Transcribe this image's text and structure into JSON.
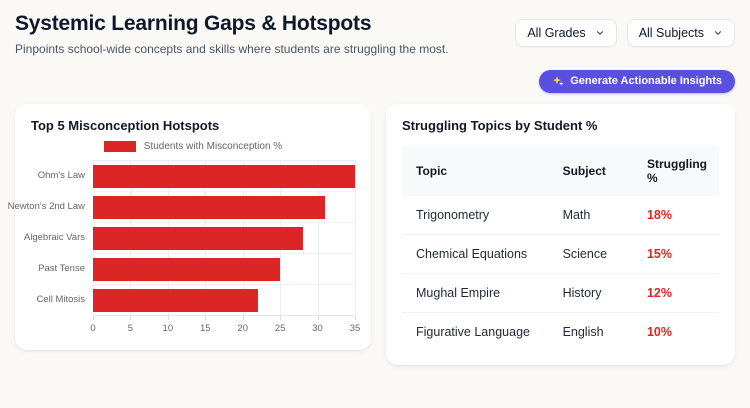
{
  "page": {
    "title": "Systemic Learning Gaps & Hotspots",
    "subtitle": "Pinpoints school-wide concepts and skills where students are struggling the most.",
    "background_color": "#FAF9F6"
  },
  "filters": {
    "grades": {
      "value": "All Grades"
    },
    "subjects": {
      "value": "All Subjects"
    }
  },
  "actions": {
    "generate_insights": {
      "label": "Generate Actionable Insights",
      "icon": "sparkles-icon",
      "color": "#5A50E0"
    }
  },
  "hotspots_card": {
    "title": "Top 5 Misconception Hotspots"
  },
  "chart_data": {
    "type": "bar",
    "orientation": "horizontal",
    "title": "Top 5 Misconception Hotspots",
    "legend_label": "Students with Misconception %",
    "legend_position": "top-center",
    "categories": [
      "Ohm's Law",
      "Newton's 2nd Law",
      "Algebraic Vars",
      "Past Tense",
      "Cell Mitosis"
    ],
    "values": [
      35,
      31,
      28,
      25,
      22
    ],
    "xlim": [
      0,
      35
    ],
    "x_ticks": [
      0,
      5,
      10,
      15,
      20,
      25,
      30,
      35
    ],
    "bar_color": "#DC2626",
    "grid": true,
    "axis_label_color": "#666666"
  },
  "table_card": {
    "title": "Struggling Topics by Student %",
    "columns": [
      "Topic",
      "Subject",
      "Struggling %"
    ],
    "rows": [
      {
        "topic": "Trigonometry",
        "subject": "Math",
        "pct": "18%"
      },
      {
        "topic": "Chemical Equations",
        "subject": "Science",
        "pct": "15%"
      },
      {
        "topic": "Mughal Empire",
        "subject": "History",
        "pct": "12%"
      },
      {
        "topic": "Figurative Language",
        "subject": "English",
        "pct": "10%"
      }
    ],
    "pct_color": "#DC2626"
  }
}
